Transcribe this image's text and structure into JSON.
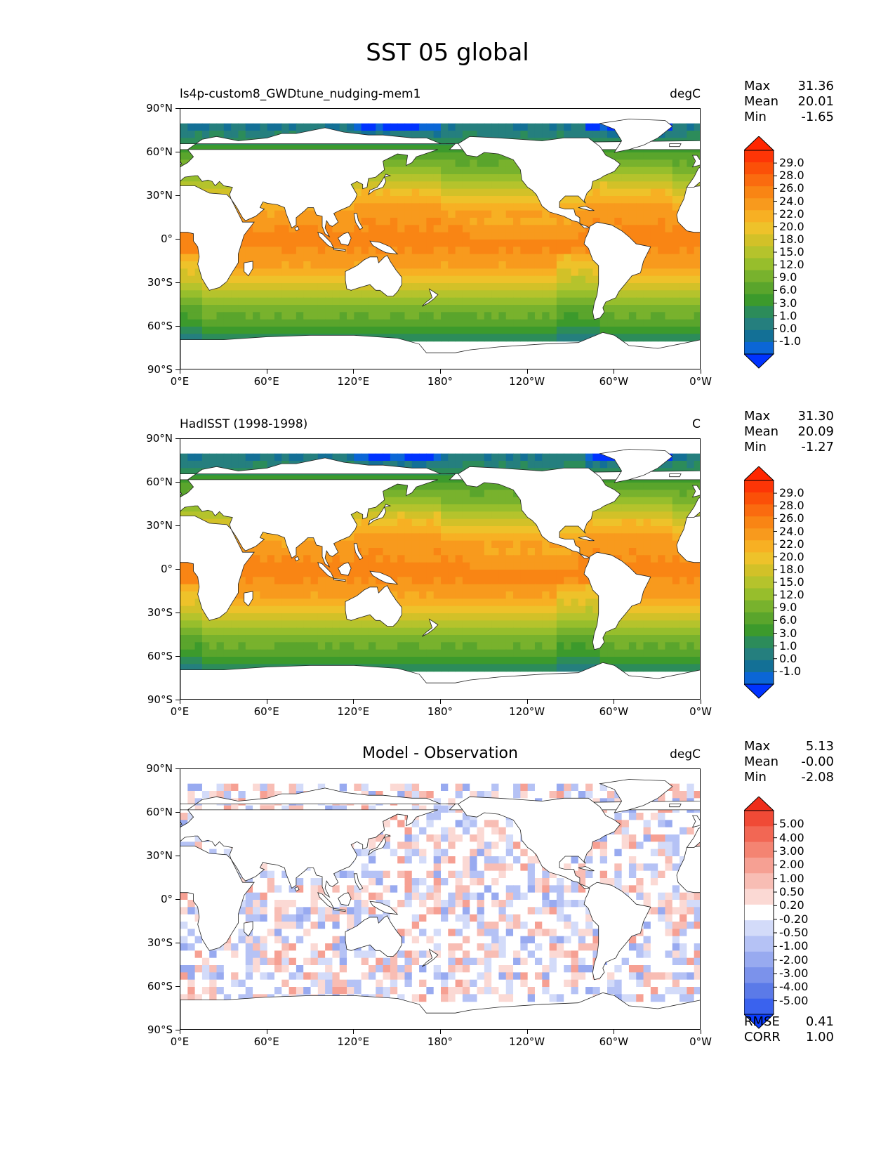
{
  "title": "SST 05 global",
  "axes": {
    "lat_ticks": [
      "90°N",
      "60°N",
      "30°N",
      "0°",
      "30°S",
      "60°S",
      "90°S"
    ],
    "lon_ticks": [
      "0°E",
      "60°E",
      "120°E",
      "180°",
      "120°W",
      "60°W",
      "0°W"
    ]
  },
  "colors": {
    "sst_levels": [
      "#0033ff",
      "#0b66d6",
      "#137096",
      "#257f7e",
      "#2c8c5a",
      "#3c9a2c",
      "#5aa52c",
      "#78b22d",
      "#97be2c",
      "#b5c32c",
      "#d2c128",
      "#eec22a",
      "#f7b023",
      "#f89a1d",
      "#f98514",
      "#fa6b0f",
      "#fb5008",
      "#fd3506",
      "#ff2600"
    ],
    "diff_levels": [
      "#0a3cff",
      "#3a62ee",
      "#5b7ae8",
      "#7b92eb",
      "#98aaf0",
      "#b5c2f5",
      "#d3dbf9",
      "#ffffff",
      "#fbd9d4",
      "#f8bdb4",
      "#f6a093",
      "#f48472",
      "#f26754",
      "#f04a36",
      "#ee2d1a"
    ]
  },
  "panels": [
    {
      "id": "model",
      "left_title": "ls4p-custom8_GWDtune_nudging-mem1",
      "center_title": "",
      "unit": "degC",
      "stats": [
        {
          "label": "Max",
          "value": "31.36"
        },
        {
          "label": "Mean",
          "value": "20.01"
        },
        {
          "label": "Min",
          "value": "-1.65"
        }
      ],
      "colorbar_labels": [
        "29.0",
        "28.0",
        "26.0",
        "24.0",
        "22.0",
        "20.0",
        "18.0",
        "15.0",
        "12.0",
        "9.0",
        "6.0",
        "3.0",
        "1.0",
        "0.0",
        "-1.0"
      ],
      "extra": []
    },
    {
      "id": "obs",
      "left_title": "HadISST (1998-1998)",
      "center_title": "",
      "unit": "C",
      "stats": [
        {
          "label": "Max",
          "value": "31.30"
        },
        {
          "label": "Mean",
          "value": "20.09"
        },
        {
          "label": "Min",
          "value": "-1.27"
        }
      ],
      "colorbar_labels": [
        "29.0",
        "28.0",
        "26.0",
        "24.0",
        "22.0",
        "20.0",
        "18.0",
        "15.0",
        "12.0",
        "9.0",
        "6.0",
        "3.0",
        "1.0",
        "0.0",
        "-1.0"
      ],
      "extra": []
    },
    {
      "id": "diff",
      "left_title": "",
      "center_title": "Model - Observation",
      "unit": "degC",
      "stats": [
        {
          "label": "Max",
          "value": "5.13"
        },
        {
          "label": "Mean",
          "value": "-0.00"
        },
        {
          "label": "Min",
          "value": "-2.08"
        }
      ],
      "colorbar_labels": [
        "5.00",
        "4.00",
        "3.00",
        "2.00",
        "1.00",
        "0.50",
        "0.20",
        "-0.20",
        "-0.50",
        "-1.00",
        "-2.00",
        "-3.00",
        "-4.00",
        "-5.00"
      ],
      "extra": [
        {
          "label": "RMSE",
          "value": "0.41"
        },
        {
          "label": "CORR",
          "value": "1.00"
        }
      ]
    }
  ]
}
